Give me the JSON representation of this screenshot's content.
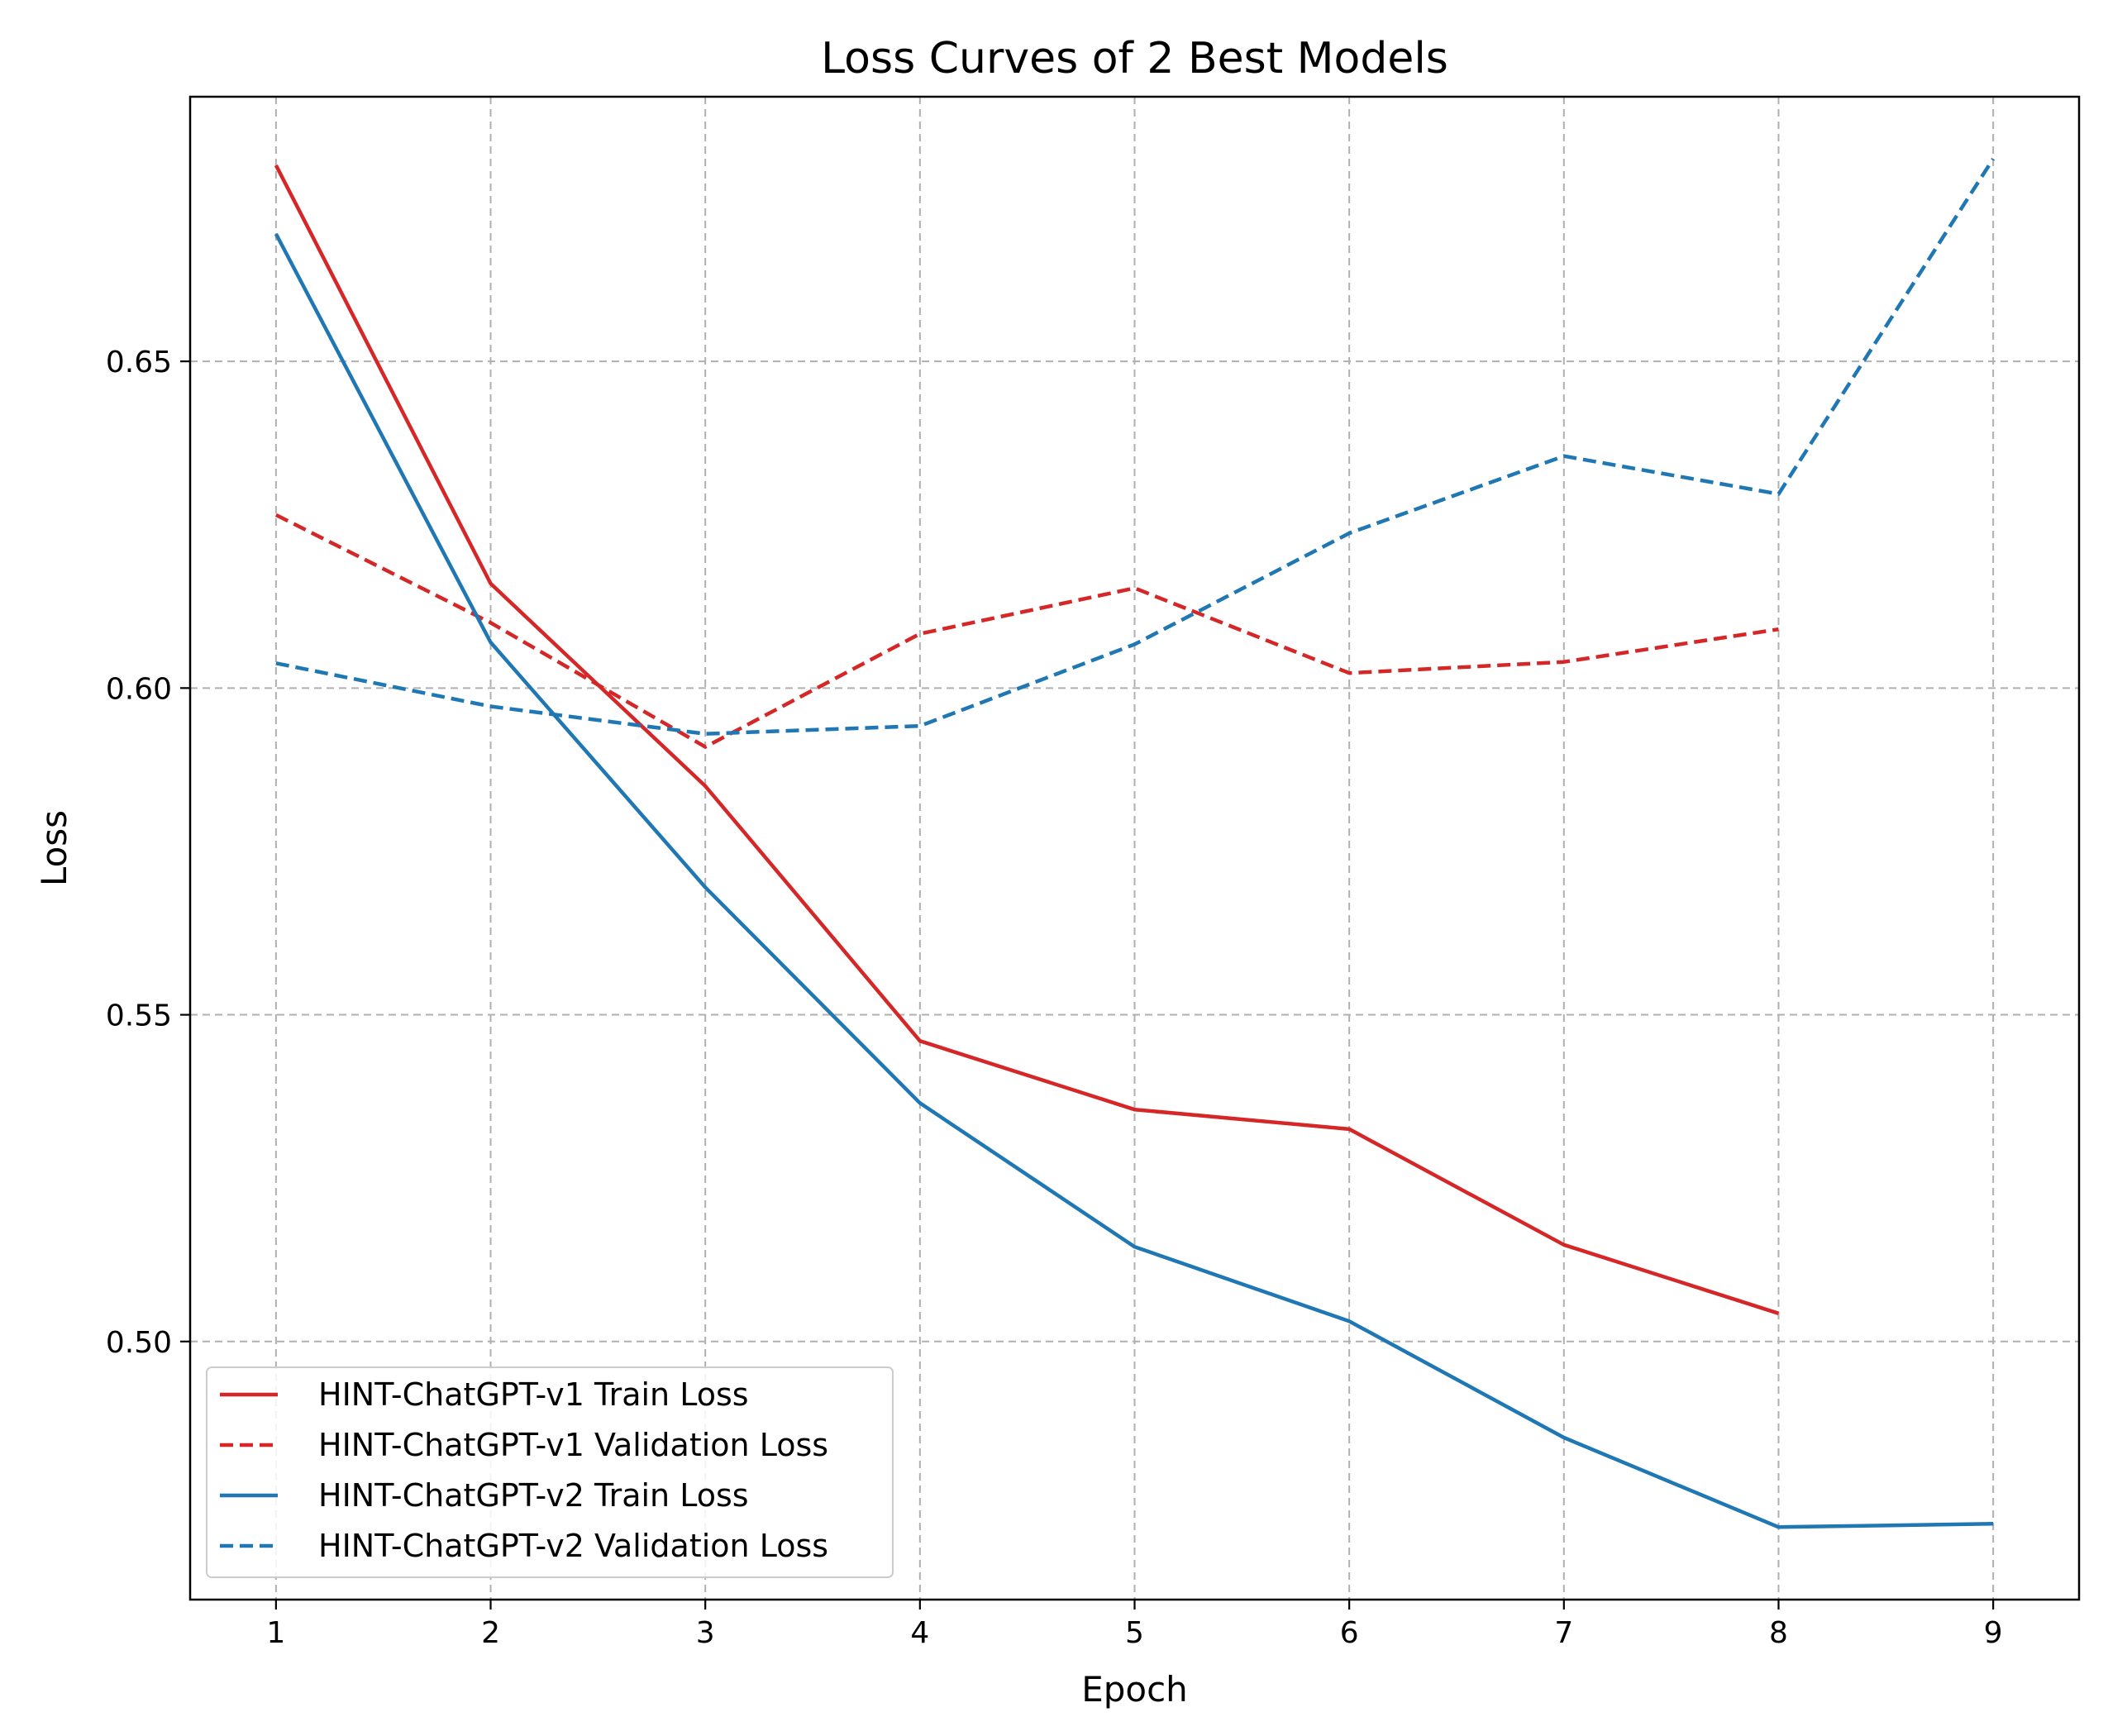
{
  "chart_data": {
    "type": "line",
    "title": "Loss Curves of 2 Best Models",
    "xlabel": "Epoch",
    "ylabel": "Loss",
    "xlim": [
      0.6,
      9.4
    ],
    "ylim": [
      0.4605,
      0.6905
    ],
    "xticks": [
      1,
      2,
      3,
      4,
      5,
      6,
      7,
      8,
      9
    ],
    "yticks": [
      0.5,
      0.55,
      0.6,
      0.65
    ],
    "ytick_labels": [
      "0.50",
      "0.55",
      "0.60",
      "0.65"
    ],
    "grid": true,
    "legend_position": "lower-left",
    "series": [
      {
        "name": "HINT-ChatGPT-v1 Train Loss",
        "color": "#d62728",
        "dash": "solid",
        "x": [
          1,
          2,
          3,
          4,
          5,
          6,
          7,
          8
        ],
        "y": [
          0.68,
          0.616,
          0.585,
          0.546,
          0.5355,
          0.5325,
          0.5148,
          0.5043
        ]
      },
      {
        "name": "HINT-ChatGPT-v1 Validation Loss",
        "color": "#d62728",
        "dash": "dashed",
        "x": [
          1,
          2,
          3,
          4,
          5,
          6,
          7,
          8
        ],
        "y": [
          0.6265,
          0.61,
          0.591,
          0.6083,
          0.6153,
          0.6023,
          0.604,
          0.609
        ]
      },
      {
        "name": "HINT-ChatGPT-v2 Train Loss",
        "color": "#1f77b4",
        "dash": "solid",
        "x": [
          1,
          2,
          3,
          4,
          5,
          6,
          7,
          8,
          9
        ],
        "y": [
          0.6695,
          0.607,
          0.5695,
          0.5365,
          0.5145,
          0.5031,
          0.4853,
          0.4716,
          0.4721
        ]
      },
      {
        "name": "HINT-ChatGPT-v2 Validation Loss",
        "color": "#1f77b4",
        "dash": "dashed",
        "x": [
          1,
          2,
          3,
          4,
          5,
          6,
          7,
          8,
          9
        ],
        "y": [
          0.6038,
          0.5972,
          0.593,
          0.5942,
          0.6067,
          0.6237,
          0.6355,
          0.6297,
          0.681
        ]
      }
    ]
  }
}
